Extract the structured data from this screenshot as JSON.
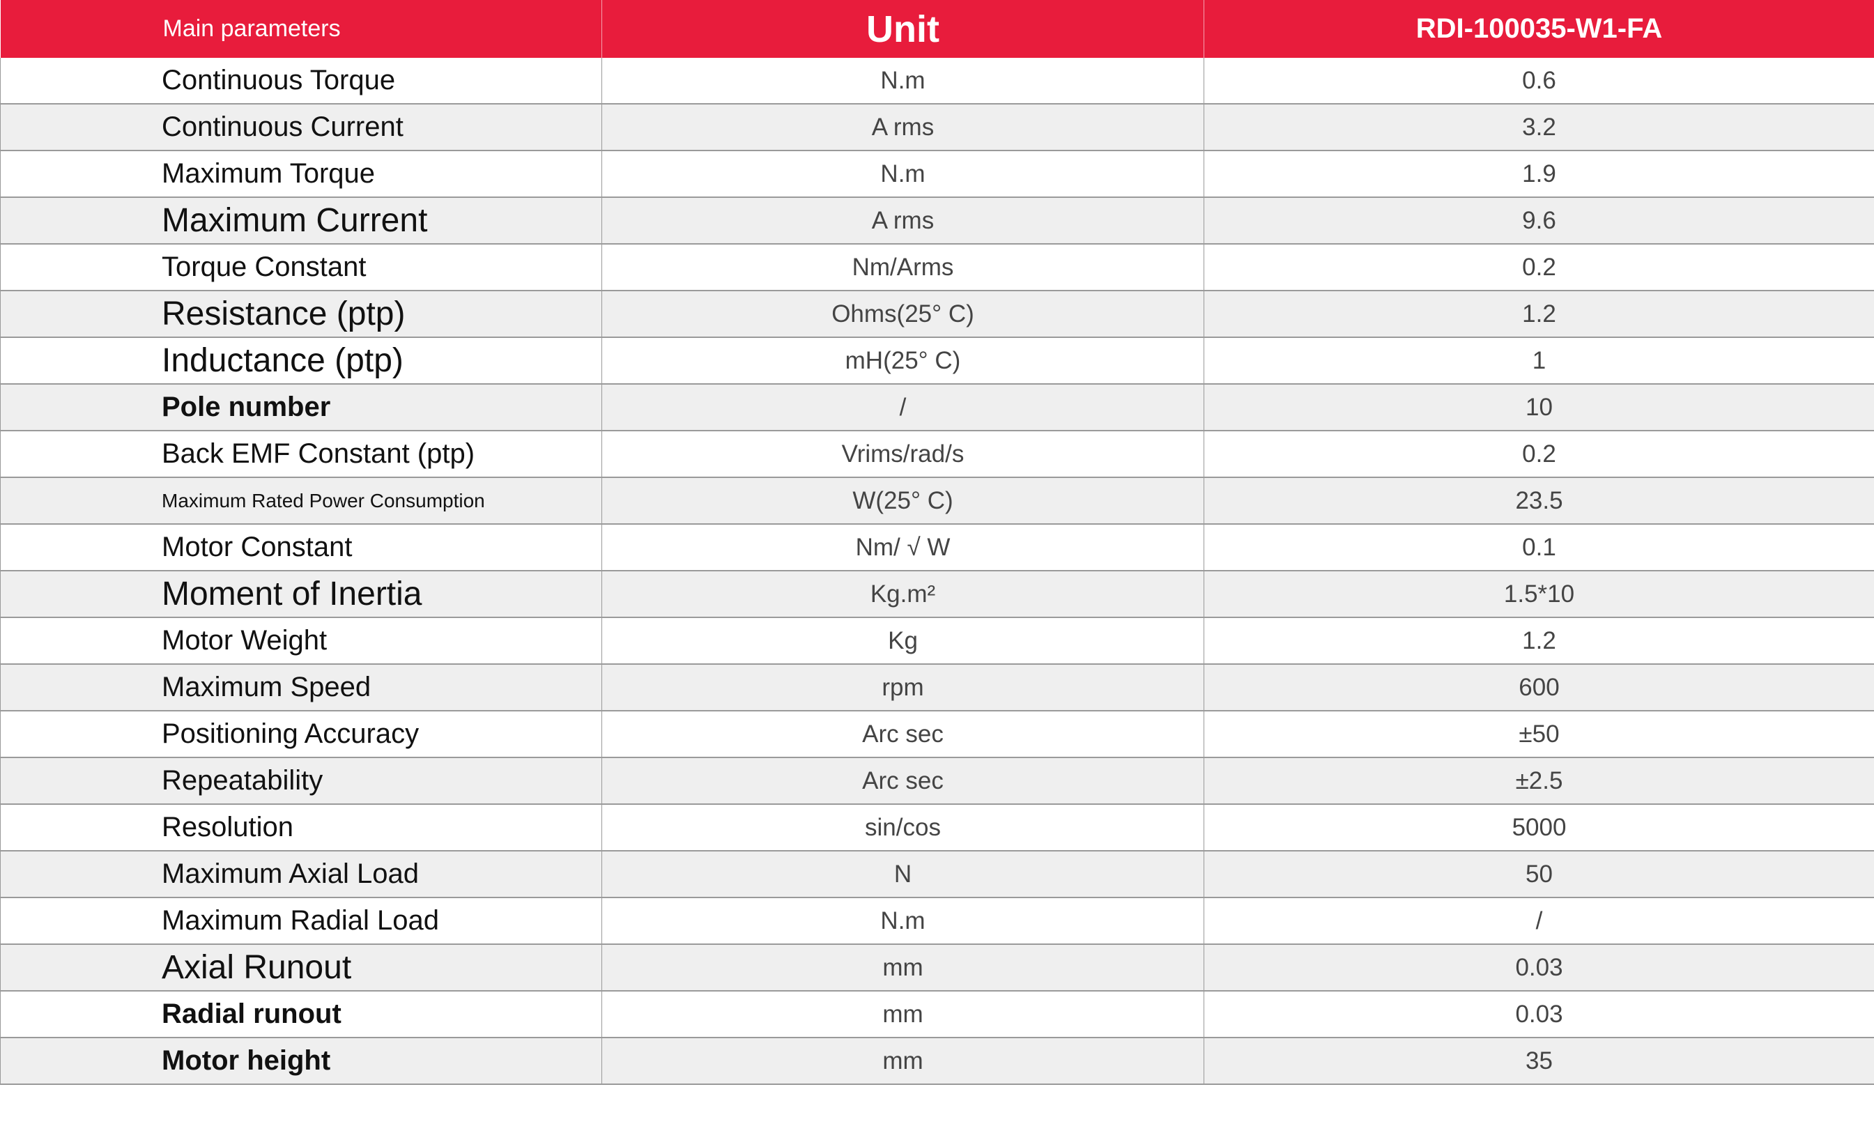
{
  "header": {
    "col_param": "Main parameters",
    "col_unit": "Unit",
    "col_model": "RDI-100035-W1-FA"
  },
  "colors": {
    "header_bg": "#e81c3c",
    "alt_row": "#efefef"
  },
  "rows": [
    {
      "param": "Continuous Torque",
      "unit": "N.m",
      "value": "0.6"
    },
    {
      "param": "Continuous Current",
      "unit": "A rms",
      "value": "3.2"
    },
    {
      "param": "Maximum Torque",
      "unit": "N.m",
      "value": "1.9"
    },
    {
      "param": "Maximum Current",
      "unit": "A rms",
      "value": "9.6"
    },
    {
      "param": "Torque Constant",
      "unit": "Nm/Arms",
      "value": "0.2"
    },
    {
      "param": "Resistance (ptp)",
      "unit": "Ohms(25° C)",
      "value": "1.2"
    },
    {
      "param": "Inductance (ptp)",
      "unit": "mH(25° C)",
      "value": "1"
    },
    {
      "param": "Pole number",
      "unit": "/",
      "value": "10"
    },
    {
      "param": "Back EMF Constant (ptp)",
      "unit": "Vrims/rad/s",
      "value": "0.2"
    },
    {
      "param": "Maximum Rated Power Consumption",
      "unit": "W(25° C)",
      "value": "23.5"
    },
    {
      "param": "Motor Constant",
      "unit": "Nm/ √ W",
      "value": "0.1"
    },
    {
      "param": "Moment of Inertia",
      "unit": "Kg.m²",
      "value": "1.5*10"
    },
    {
      "param": "Motor Weight",
      "unit": "Kg",
      "value": "1.2"
    },
    {
      "param": "Maximum Speed",
      "unit": "rpm",
      "value": "600"
    },
    {
      "param": "Positioning Accuracy",
      "unit": "Arc sec",
      "value": "±50"
    },
    {
      "param": "Repeatability",
      "unit": "Arc sec",
      "value": "±2.5"
    },
    {
      "param": "Resolution",
      "unit": "sin/cos",
      "value": "5000"
    },
    {
      "param": "Maximum Axial Load",
      "unit": "N",
      "value": "50"
    },
    {
      "param": "Maximum Radial Load",
      "unit": "N.m",
      "value": "/"
    },
    {
      "param": "Axial Runout",
      "unit": "mm",
      "value": "0.03"
    },
    {
      "param": "Radial runout",
      "unit": "mm",
      "value": "0.03"
    },
    {
      "param": "Motor height",
      "unit": "mm",
      "value": "35"
    }
  ]
}
